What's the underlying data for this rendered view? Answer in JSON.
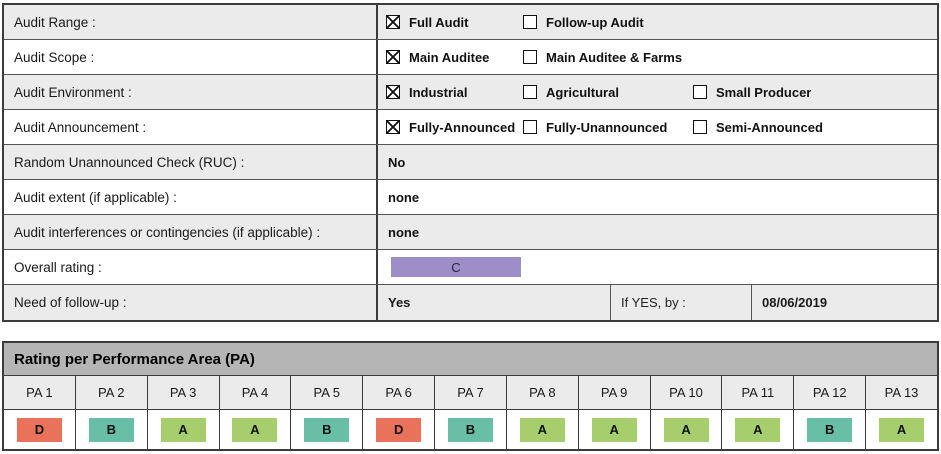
{
  "form": {
    "rows": [
      {
        "label": "Audit Range :",
        "type": "checkboxes",
        "options": [
          {
            "label": "Full Audit",
            "checked": true
          },
          {
            "label": "Follow-up Audit",
            "checked": false
          }
        ]
      },
      {
        "label": "Audit Scope :",
        "type": "checkboxes",
        "options": [
          {
            "label": "Main Auditee",
            "checked": true
          },
          {
            "label": "Main Auditee & Farms",
            "checked": false
          }
        ]
      },
      {
        "label": "Audit Environment :",
        "type": "checkboxes",
        "options": [
          {
            "label": "Industrial",
            "checked": true
          },
          {
            "label": "Agricultural",
            "checked": false
          },
          {
            "label": "Small Producer",
            "checked": false
          }
        ]
      },
      {
        "label": "Audit Announcement :",
        "type": "checkboxes",
        "options": [
          {
            "label": "Fully-Announced",
            "checked": true
          },
          {
            "label": "Fully-Unannounced",
            "checked": false
          },
          {
            "label": "Semi-Announced",
            "checked": false
          }
        ]
      },
      {
        "label": "Random Unannounced Check (RUC) :",
        "type": "text",
        "value": "No"
      },
      {
        "label": "Audit extent (if applicable) :",
        "type": "text",
        "value": "none"
      },
      {
        "label": "Audit interferences or contingencies (if applicable) :",
        "type": "text",
        "value": "none"
      },
      {
        "label": "Overall rating :",
        "type": "rating-badge",
        "value": "C",
        "color": "#9d8ec7"
      },
      {
        "label": "Need of follow-up :",
        "type": "followup",
        "value": "Yes",
        "if_yes_label": "If YES, by :",
        "if_yes_date": "08/06/2019"
      }
    ]
  },
  "pa_table": {
    "title": "Rating per Performance Area (PA)",
    "columns": [
      "PA 1",
      "PA 2",
      "PA 3",
      "PA 4",
      "PA 5",
      "PA 6",
      "PA 7",
      "PA 8",
      "PA 9",
      "PA 10",
      "PA 11",
      "PA 12",
      "PA 13"
    ],
    "ratings": [
      {
        "grade": "D",
        "color": "#e8735a"
      },
      {
        "grade": "B",
        "color": "#69bea6"
      },
      {
        "grade": "A",
        "color": "#a6ce6c"
      },
      {
        "grade": "A",
        "color": "#a6ce6c"
      },
      {
        "grade": "B",
        "color": "#69bea6"
      },
      {
        "grade": "D",
        "color": "#e8735a"
      },
      {
        "grade": "B",
        "color": "#69bea6"
      },
      {
        "grade": "A",
        "color": "#a6ce6c"
      },
      {
        "grade": "A",
        "color": "#a6ce6c"
      },
      {
        "grade": "A",
        "color": "#a6ce6c"
      },
      {
        "grade": "A",
        "color": "#a6ce6c"
      },
      {
        "grade": "B",
        "color": "#69bea6"
      },
      {
        "grade": "A",
        "color": "#a6ce6c"
      }
    ]
  },
  "colors": {
    "row_shaded": "#ebebeb",
    "pa_title_bg": "#b5b5b5",
    "border_dark": "#3c3c3c",
    "overall_rating_purple": "#9d8ec7",
    "grade_a_green": "#a6ce6c",
    "grade_b_teal": "#69bea6",
    "grade_d_red": "#e8735a"
  }
}
